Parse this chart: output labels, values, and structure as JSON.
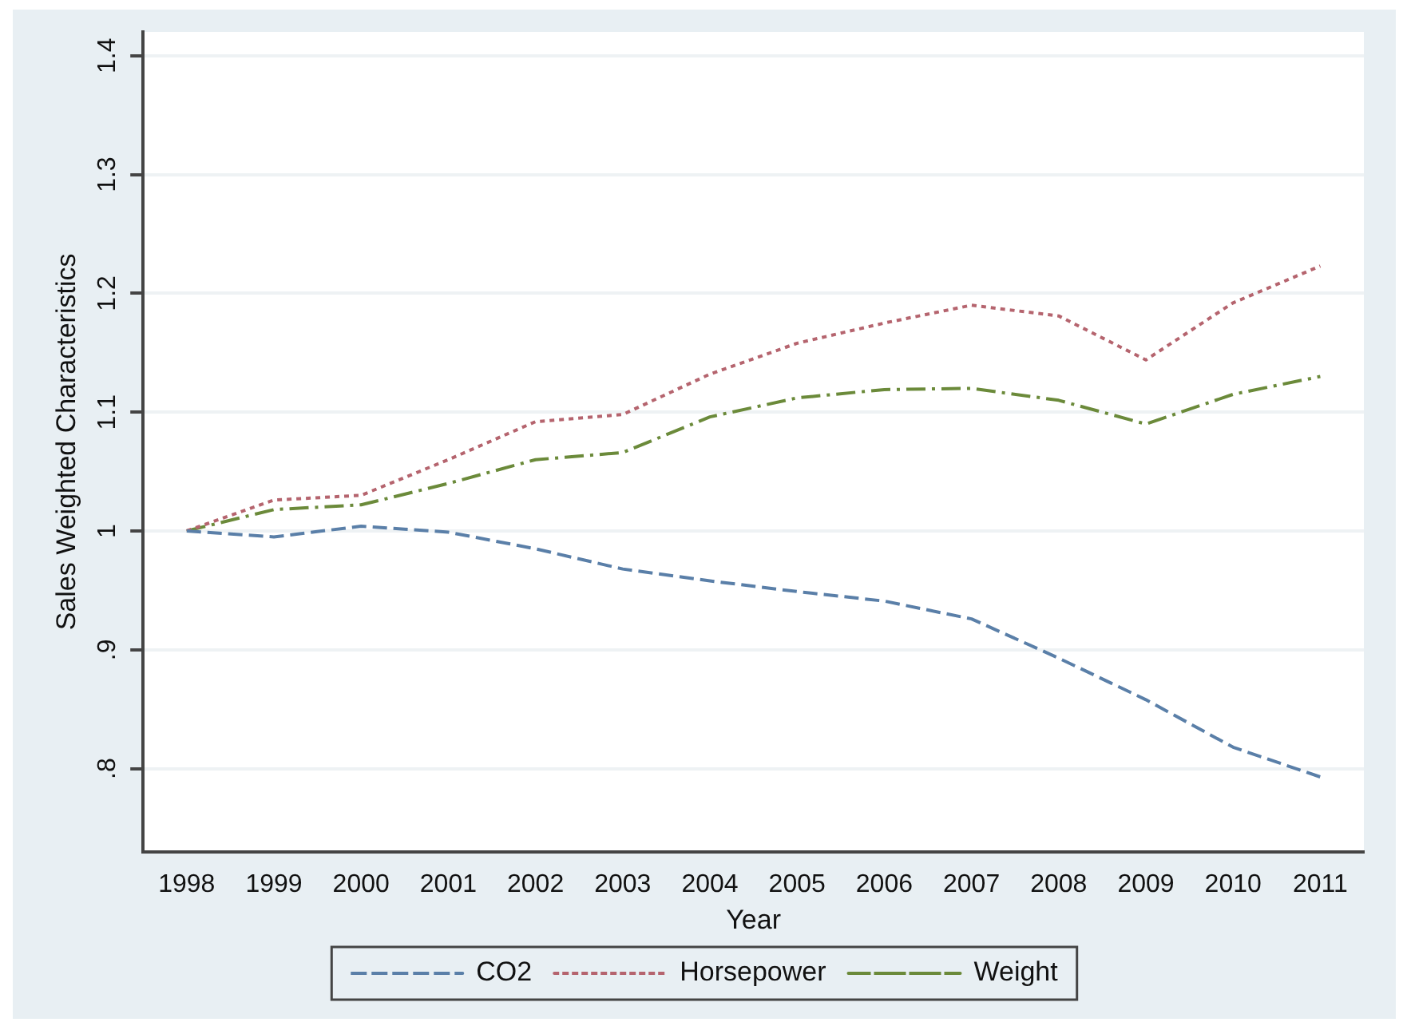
{
  "chart_data": {
    "type": "line",
    "xlabel": "Year",
    "ylabel": "Sales Weighted Characteristics",
    "categories": [
      "1998",
      "1999",
      "2000",
      "2001",
      "2002",
      "2003",
      "2004",
      "2005",
      "2006",
      "2007",
      "2008",
      "2009",
      "2010",
      "2011"
    ],
    "series": [
      {
        "name": "CO2",
        "color": "#5a7fa8",
        "line_style": "dashed",
        "values": [
          1.0,
          0.995,
          1.004,
          0.999,
          0.985,
          0.968,
          0.958,
          0.949,
          0.941,
          0.926,
          0.893,
          0.858,
          0.818,
          0.793
        ]
      },
      {
        "name": "Horsepower",
        "color": "#b5646e",
        "line_style": "dotted",
        "values": [
          1.0,
          1.026,
          1.03,
          1.06,
          1.092,
          1.098,
          1.132,
          1.158,
          1.175,
          1.19,
          1.181,
          1.144,
          1.192,
          1.223
        ]
      },
      {
        "name": "Weight",
        "color": "#6b8a3a",
        "line_style": "dashdot",
        "values": [
          1.0,
          1.018,
          1.022,
          1.04,
          1.06,
          1.066,
          1.096,
          1.112,
          1.119,
          1.12,
          1.11,
          1.09,
          1.115,
          1.13
        ]
      }
    ],
    "ylim": [
      0.73,
      1.42
    ],
    "yticks": [
      {
        "value": 0.8,
        "label": ".8"
      },
      {
        "value": 0.9,
        "label": ".9"
      },
      {
        "value": 1.0,
        "label": "1"
      },
      1.1,
      1.2,
      1.3,
      1.4
    ],
    "grid": "y",
    "legend": "bottom",
    "marker": "none"
  }
}
